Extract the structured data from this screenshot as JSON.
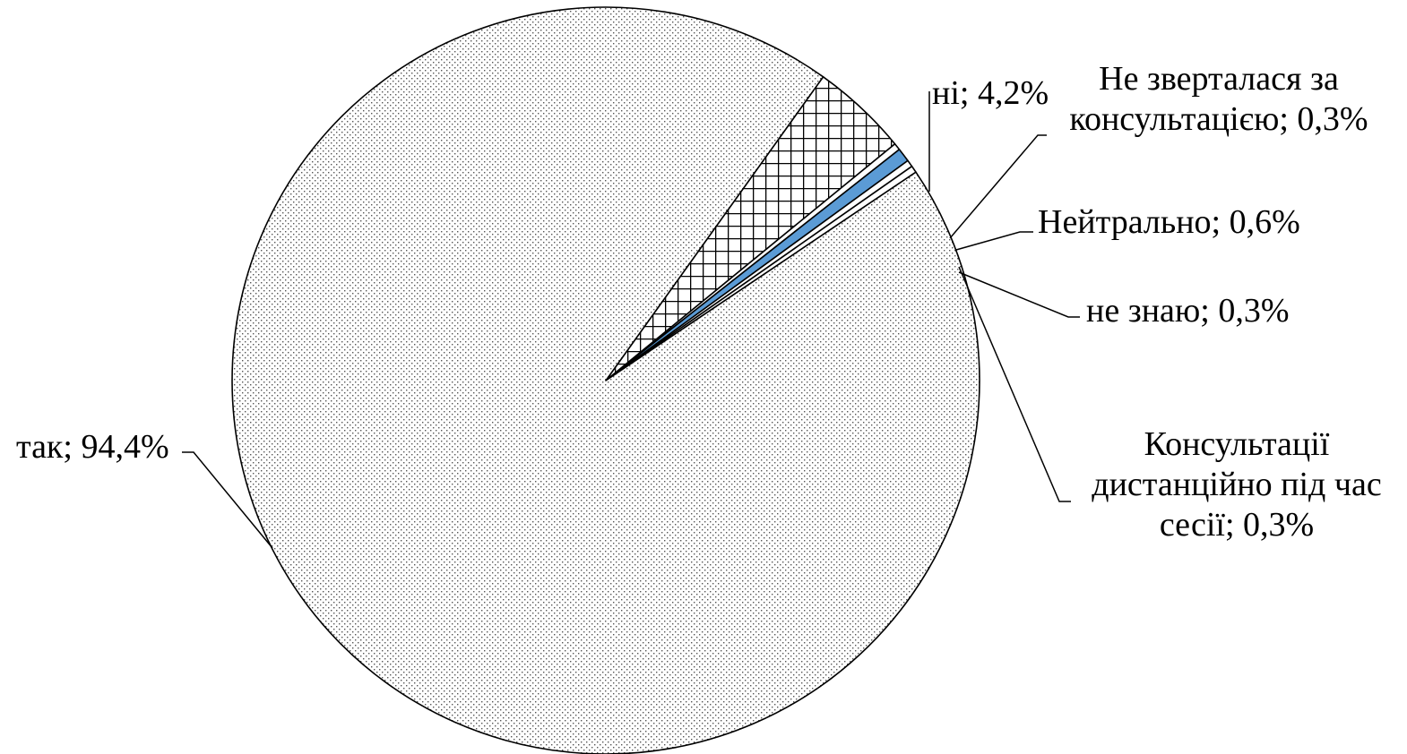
{
  "chart_data": {
    "type": "pie",
    "slices": [
      {
        "label": "так",
        "value": 94.4,
        "display": "так; 94,4%",
        "fill": "dots"
      },
      {
        "label": "ні",
        "value": 4.2,
        "display": "ні; 4,2%",
        "fill": "crosshatch"
      },
      {
        "label": "Не зверталася за консультацією",
        "value": 0.3,
        "display_lines": [
          "Не зверталася за",
          "консультацією; 0,3%"
        ],
        "fill": "white"
      },
      {
        "label": "Нейтрально",
        "value": 0.6,
        "display": "Нейтрально; 0,6%",
        "fill": "#5b9bd5"
      },
      {
        "label": "не знаю",
        "value": 0.3,
        "display": "не знаю; 0,3%",
        "fill": "white"
      },
      {
        "label": "Консультації дистанційно під час сесії",
        "value": 0.3,
        "display_lines": [
          "Консультації",
          "дистанційно під час",
          "сесії; 0,3%"
        ],
        "fill": "white"
      }
    ]
  }
}
